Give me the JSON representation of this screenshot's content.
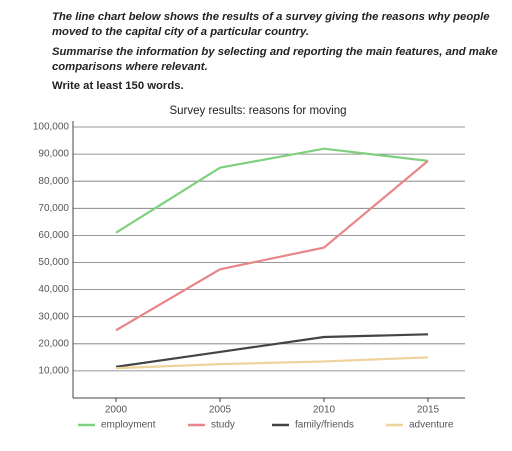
{
  "instructions": [
    "The line chart below shows the results of a survey giving the reasons why people moved to the capital city of a particular country.",
    "Summarise the information by selecting and reporting the main features, and make comparisons where relevant.",
    "Write at least 150 words."
  ],
  "chart_data": {
    "type": "line",
    "title": "Survey results: reasons for moving",
    "categories": [
      "2000",
      "2005",
      "2010",
      "2015"
    ],
    "series": [
      {
        "name": "employment",
        "color": "#7fd17f",
        "values": [
          61000,
          85000,
          92000,
          87500
        ]
      },
      {
        "name": "study",
        "color": "#e8878a",
        "values": [
          25000,
          47500,
          55500,
          87500
        ]
      },
      {
        "name": "family/friends",
        "color": "#444444",
        "values": [
          11500,
          17000,
          22500,
          23500
        ]
      },
      {
        "name": "adventure",
        "color": "#efd39d",
        "values": [
          11000,
          12500,
          13500,
          15000
        ]
      }
    ],
    "ylim": [
      0,
      100000
    ],
    "yticks": [
      {
        "value": 10000,
        "label": "10,000"
      },
      {
        "value": 20000,
        "label": "20,000"
      },
      {
        "value": 30000,
        "label": "30,000"
      },
      {
        "value": 40000,
        "label": "40,000"
      },
      {
        "value": 50000,
        "label": "50,000"
      },
      {
        "value": 60000,
        "label": "60,000"
      },
      {
        "value": 70000,
        "label": "70,000"
      },
      {
        "value": 80000,
        "label": "80,000"
      },
      {
        "value": 90000,
        "label": "90,000"
      },
      {
        "value": 100000,
        "label": "100,000"
      }
    ],
    "grid": true,
    "legend": "bottom"
  }
}
